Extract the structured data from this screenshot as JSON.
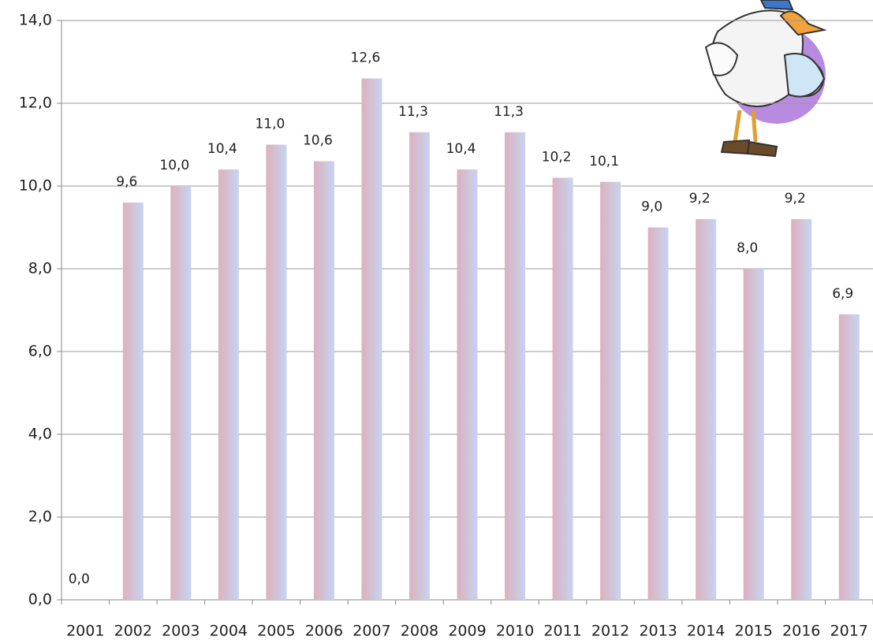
{
  "chart_data": {
    "type": "bar",
    "categories": [
      "2001",
      "2002",
      "2003",
      "2004",
      "2005",
      "2006",
      "2007",
      "2008",
      "2009",
      "2010",
      "2011",
      "2012",
      "2013",
      "2014",
      "2015",
      "2016",
      "2017"
    ],
    "values": [
      0.0,
      9.6,
      10.0,
      10.4,
      11.0,
      10.6,
      12.6,
      11.3,
      10.4,
      11.3,
      10.2,
      10.1,
      9.0,
      9.2,
      8.0,
      9.2,
      6.9
    ],
    "value_labels": [
      "0,0",
      "9,6",
      "10,0",
      "10,4",
      "11,0",
      "10,6",
      "12,6",
      "11,3",
      "10,4",
      "11,3",
      "10,2",
      "10,1",
      "9,0",
      "9,2",
      "8,0",
      "9,2",
      "6,9"
    ],
    "colors": [
      "#dcb2bc",
      "#c8d3f2"
    ],
    "ylim": [
      0,
      14
    ],
    "yticks": [
      {
        "value": 0,
        "label": "0,0"
      },
      {
        "value": 2,
        "label": "2,0"
      },
      {
        "value": 4,
        "label": "4,0"
      },
      {
        "value": 6,
        "label": "6,0"
      },
      {
        "value": 8,
        "label": "8,0"
      },
      {
        "value": 10,
        "label": "10,0"
      },
      {
        "value": 12,
        "label": "12,0"
      },
      {
        "value": 14,
        "label": "14,0"
      }
    ],
    "grid": true
  }
}
